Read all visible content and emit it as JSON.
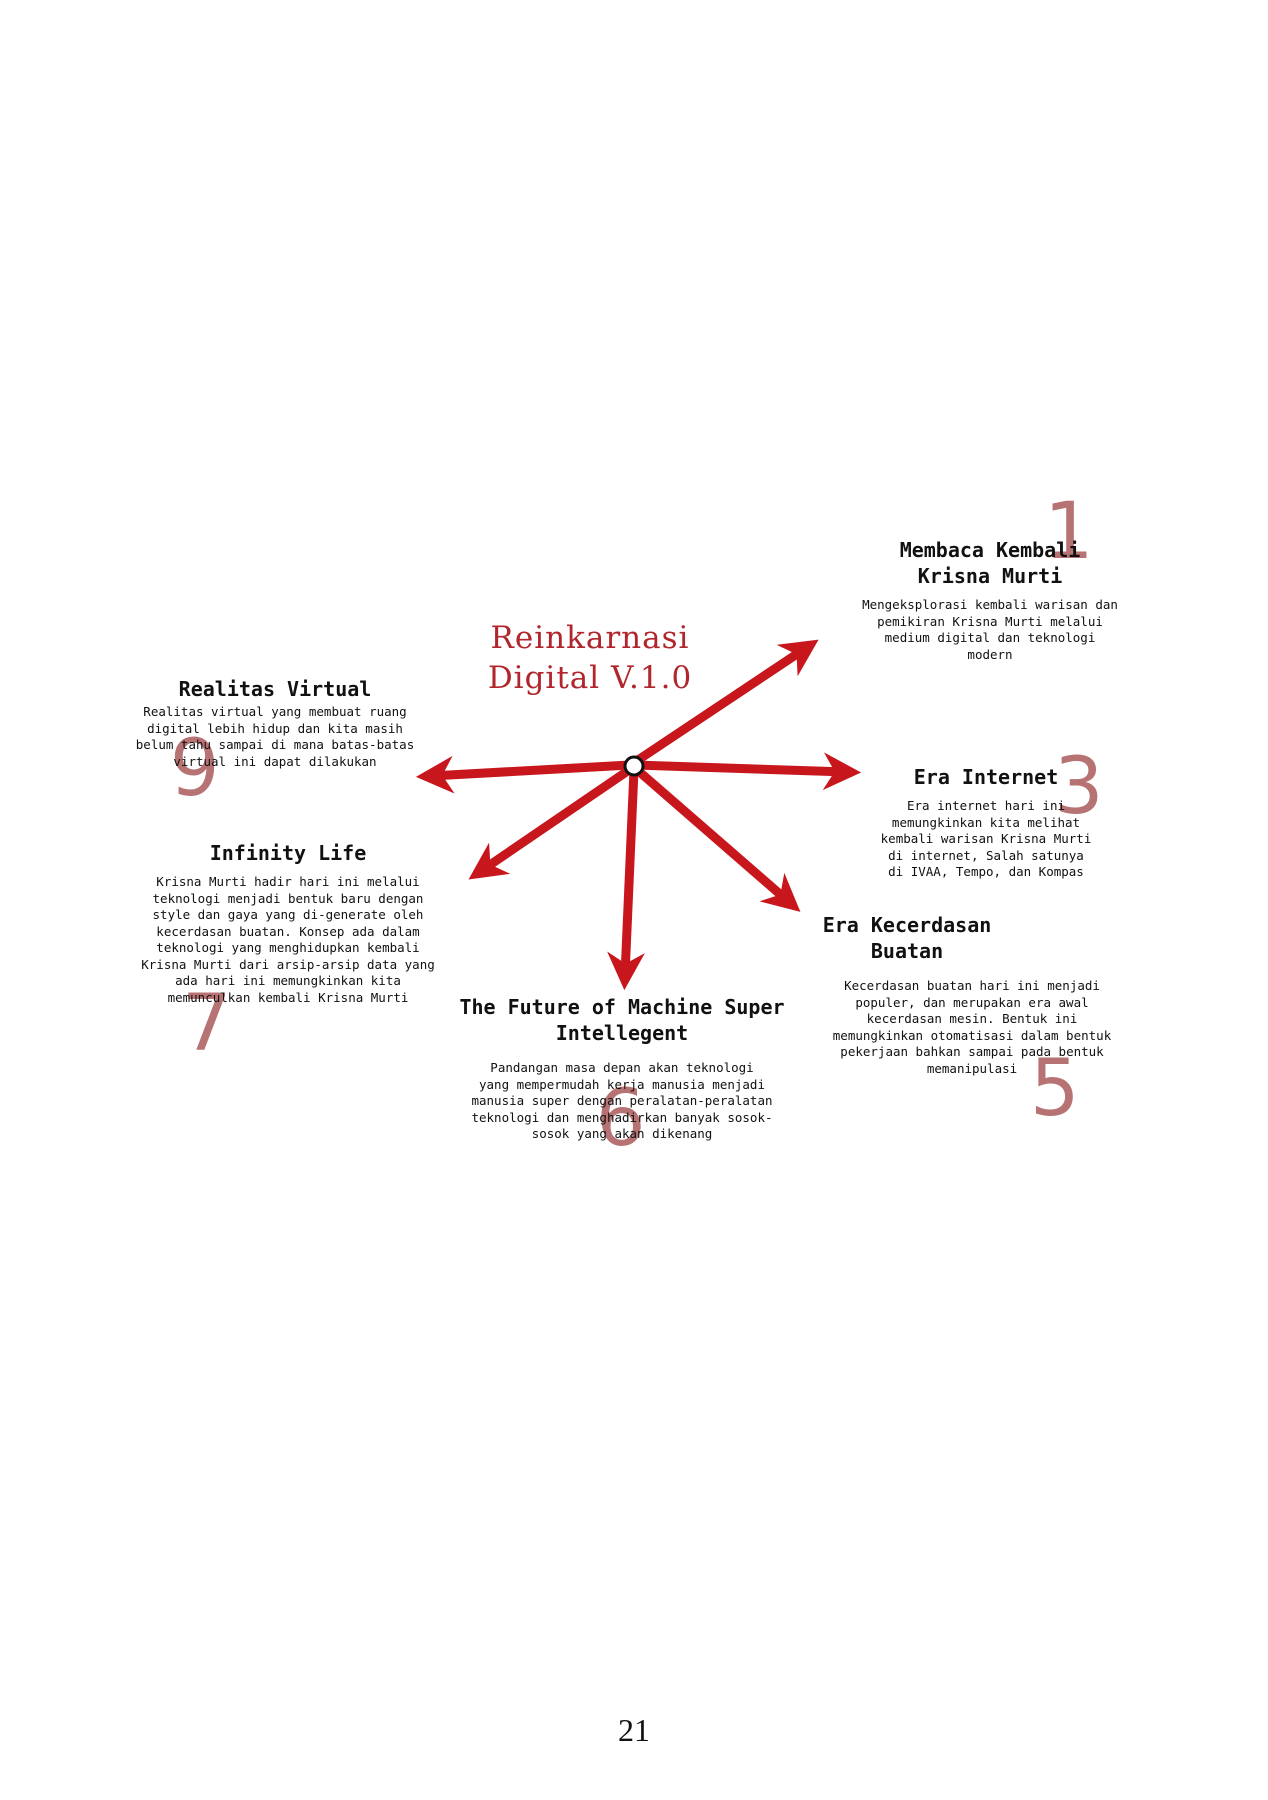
{
  "title": "Reinkarnasi\nDigital V.1.0",
  "colors": {
    "arrow": "#c8161d",
    "number": "#b46c6c",
    "title": "#b0262c"
  },
  "nodes": [
    {
      "id": "membaca-kembali",
      "number": "1",
      "heading": "Membaca Kembali\nKrisna Murti",
      "description": "Mengeksplorasi kembali warisan dan\npemikiran Krisna Murti melalui\nmedium digital dan teknologi\nmodern"
    },
    {
      "id": "era-internet",
      "number": "3",
      "heading": "Era Internet",
      "description": "Era internet hari ini\nmemungkinkan kita melihat\nkembali warisan Krisna Murti\ndi internet, Salah satunya\ndi IVAA, Tempo, dan Kompas"
    },
    {
      "id": "era-kecerdasan-buatan",
      "number": "5",
      "heading": "Era Kecerdasan\nBuatan",
      "description": "Kecerdasan buatan hari ini menjadi\npopuler, dan merupakan era awal\nkecerdasan mesin. Bentuk ini\nmemungkinkan otomatisasi dalam bentuk\npekerjaan bahkan sampai pada bentuk\nmemanipulasi"
    },
    {
      "id": "future-machine",
      "number": "6",
      "heading": "The Future of Machine Super\nIntellegent",
      "description": "Pandangan masa depan akan teknologi\nyang mempermudah kerja manusia menjadi\nmanusia super dengan peralatan-peralatan\nteknologi dan menghadirkan banyak sosok-\nsosok yang akan dikenang"
    },
    {
      "id": "infinity-life",
      "number": "7",
      "heading": "Infinity Life",
      "description": "Krisna Murti hadir hari ini melalui\nteknologi menjadi bentuk baru dengan\nstyle dan gaya yang di-generate oleh\nkecerdasan buatan. Konsep ada dalam\nteknologi yang menghidupkan kembali\nKrisna Murti dari arsip-arsip data yang\nada hari ini memungkinkan kita\nmemunculkan kembali Krisna Murti"
    },
    {
      "id": "realitas-virtual",
      "number": "9",
      "heading": "Realitas Virtual",
      "description": "Realitas virtual yang membuat ruang\ndigital lebih hidup dan kita masih\nbelum tahu sampai di mana batas-batas\nvirtual ini dapat dilakukan"
    }
  ],
  "page_number": "21"
}
